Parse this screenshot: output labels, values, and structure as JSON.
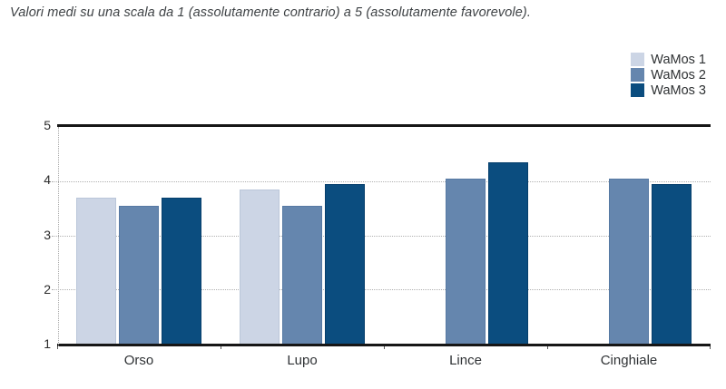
{
  "chart_data": {
    "type": "bar",
    "title": "Valori medi su una scala da 1 (assolutamente contrario) a 5 (assolutamente favorevole).",
    "categories": [
      "Orso",
      "Lupo",
      "Lince",
      "Cinghiale"
    ],
    "series": [
      {
        "name": "WaMos 1",
        "color": "#ccd5e5",
        "border_color": "#bac6d9",
        "values": [
          3.7,
          3.85,
          null,
          null
        ]
      },
      {
        "name": "WaMos 2",
        "color": "#6586ae",
        "border_color": "#5679a3",
        "values": [
          3.55,
          3.55,
          4.05,
          4.05
        ]
      },
      {
        "name": "WaMos 3",
        "color": "#0b4d7f",
        "border_color": "#063f6c",
        "values": [
          3.7,
          3.95,
          4.35,
          3.95
        ]
      }
    ],
    "ylim": [
      1,
      5
    ],
    "yticks": [
      5,
      4,
      3,
      2,
      1
    ],
    "gridlines_at": [
      4,
      3,
      2
    ],
    "grid_style": "dotted",
    "legend_position": "top-right",
    "axis_color": "#161616",
    "grid_color": "#b0b0b0",
    "background_color": "#ffffff"
  }
}
